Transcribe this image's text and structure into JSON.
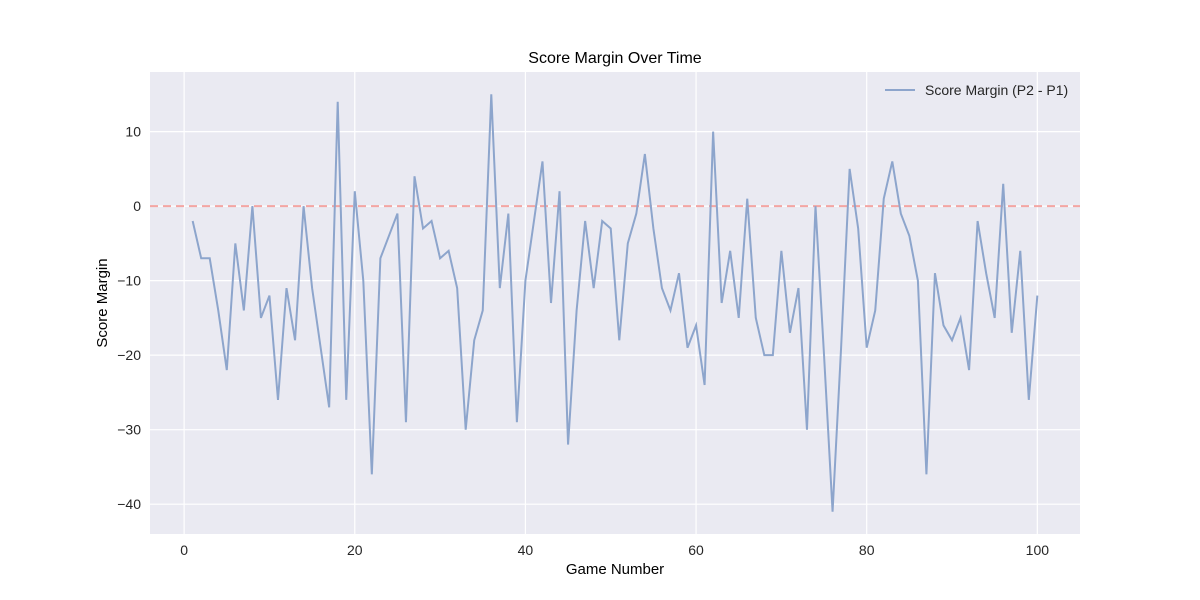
{
  "chart_data": {
    "type": "line",
    "title": "Score Margin Over Time",
    "xlabel": "Game Number",
    "ylabel": "Score Margin",
    "xlim": [
      -4,
      105
    ],
    "ylim": [
      -44,
      18
    ],
    "x_ticks": [
      0,
      20,
      40,
      60,
      80,
      100
    ],
    "y_ticks": [
      -40,
      -30,
      -20,
      -10,
      0,
      10
    ],
    "grid": true,
    "legend_position": "top-right",
    "reference_line": {
      "y": 0,
      "style": "dashed",
      "color": "#f4a5a3"
    },
    "colors": {
      "plot_background": "#eaeaf2",
      "grid": "#ffffff",
      "series": "#8da5cc"
    },
    "series": [
      {
        "name": "Score Margin (P2 - P1)",
        "x": [
          1,
          2,
          3,
          4,
          5,
          6,
          7,
          8,
          9,
          10,
          11,
          12,
          13,
          14,
          15,
          16,
          17,
          18,
          19,
          20,
          21,
          22,
          23,
          24,
          25,
          26,
          27,
          28,
          29,
          30,
          31,
          32,
          33,
          34,
          35,
          36,
          37,
          38,
          39,
          40,
          41,
          42,
          43,
          44,
          45,
          46,
          47,
          48,
          49,
          50,
          51,
          52,
          53,
          54,
          55,
          56,
          57,
          58,
          59,
          60,
          61,
          62,
          63,
          64,
          65,
          66,
          67,
          68,
          69,
          70,
          71,
          72,
          73,
          74,
          75,
          76,
          77,
          78,
          79,
          80,
          81,
          82,
          83,
          84,
          85,
          86,
          87,
          88,
          89,
          90,
          91,
          92,
          93,
          94,
          95,
          96,
          97,
          98,
          99,
          100
        ],
        "y": [
          -2,
          -7,
          -7,
          -14,
          -22,
          -5,
          -14,
          0,
          -15,
          -12,
          -26,
          -11,
          -18,
          0,
          -11,
          -19,
          -27,
          14,
          -26,
          2,
          -10,
          -36,
          -7,
          -4,
          -1,
          -29,
          4,
          -3,
          -2,
          -7,
          -6,
          -11,
          -30,
          -18,
          -14,
          15,
          -11,
          -1,
          -29,
          -10,
          -2,
          6,
          -13,
          2,
          -32,
          -14,
          -2,
          -11,
          -2,
          -3,
          -18,
          -5,
          -1,
          7,
          -3,
          -11,
          -14,
          -9,
          -19,
          -16,
          -24,
          10,
          -13,
          -6,
          -15,
          1,
          -15,
          -20,
          -20,
          -6,
          -17,
          -11,
          -30,
          0,
          -20,
          -41,
          -19,
          5,
          -3,
          -19,
          -14,
          1,
          6,
          -1,
          -4,
          -10,
          -36,
          -9,
          -16,
          -18,
          -15,
          -22,
          -2,
          -9,
          -15,
          3,
          -17,
          -6,
          -26,
          -12
        ]
      }
    ]
  }
}
